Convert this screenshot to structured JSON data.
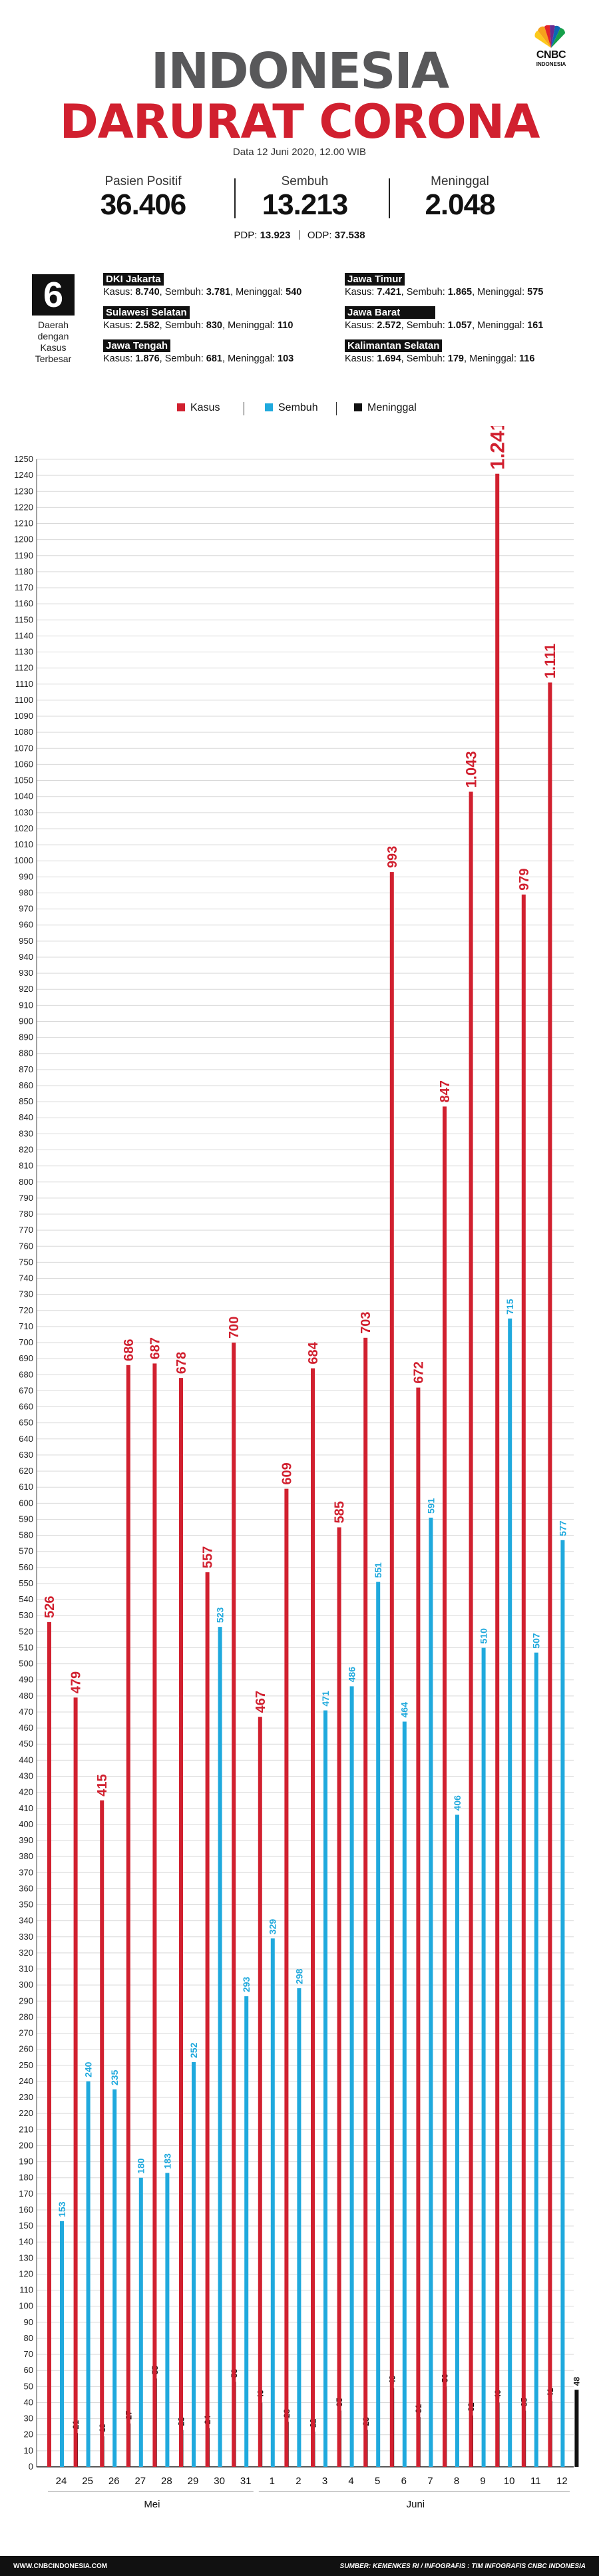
{
  "header": {
    "title_line1": "INDONESIA",
    "title_line2": "DARURAT CORONA",
    "date": "Data 12 Juni 2020, 12.00 WIB"
  },
  "logo": {
    "brand": "CNBC",
    "sub": "INDONESIA",
    "icon": "peacock-icon"
  },
  "summary": [
    {
      "label": "Pasien Positif",
      "value": "36.406"
    },
    {
      "label": "Sembuh",
      "value": "13.213"
    },
    {
      "label": "Meninggal",
      "value": "2.048"
    }
  ],
  "pdp_odp": {
    "pdp_label": "PDP:",
    "pdp_value": "13.923",
    "odp_label": "ODP:",
    "odp_value": "37.538"
  },
  "top_regions": {
    "count": "6",
    "caption": [
      "Daerah",
      "dengan",
      "Kasus",
      "Terbesar"
    ],
    "kasus_label": "Kasus:",
    "sembuh_label": "Sembuh:",
    "meninggal_label": "Meninggal:",
    "items": [
      {
        "name": "DKI Jakarta",
        "kasus": "8.740",
        "sembuh": "3.781",
        "meninggal": "540"
      },
      {
        "name": "Sulawesi Selatan",
        "kasus": "2.582",
        "sembuh": "830",
        "meninggal": "110"
      },
      {
        "name": "Jawa Tengah",
        "kasus": "1.876",
        "sembuh": "681",
        "meninggal": "103"
      },
      {
        "name": "Jawa Timur",
        "kasus": "7.421",
        "sembuh": "1.865",
        "meninggal": "575"
      },
      {
        "name": "Jawa Barat",
        "kasus": "2.572",
        "sembuh": "1.057",
        "meninggal": "161"
      },
      {
        "name": "Kalimantan Selatan",
        "kasus": "1.694",
        "sembuh": "179",
        "meninggal": "116"
      }
    ]
  },
  "colors": {
    "kasus": "#d1202f",
    "sembuh": "#1fa9dd",
    "meninggal": "#111111",
    "grid": "#d9d9d9"
  },
  "chart_data": {
    "type": "bar",
    "categories": [
      "24",
      "25",
      "26",
      "27",
      "28",
      "29",
      "30",
      "31",
      "1",
      "2",
      "3",
      "4",
      "5",
      "6",
      "7",
      "8",
      "9",
      "10",
      "11",
      "12"
    ],
    "month_labels": [
      {
        "label": "Mei",
        "from": 0,
        "to": 7
      },
      {
        "label": "Juni",
        "from": 8,
        "to": 19
      }
    ],
    "series": [
      {
        "name": "Kasus",
        "color": "#d1202f",
        "values": [
          526,
          479,
          415,
          686,
          687,
          678,
          557,
          700,
          467,
          609,
          684,
          585,
          703,
          993,
          672,
          847,
          1043,
          1241,
          979,
          1111
        ]
      },
      {
        "name": "Sembuh",
        "color": "#1fa9dd",
        "values": [
          153,
          240,
          235,
          180,
          183,
          252,
          523,
          293,
          329,
          298,
          471,
          486,
          551,
          464,
          591,
          406,
          510,
          715,
          507,
          577
        ]
      },
      {
        "name": "Meninggal",
        "color": "#111111",
        "values": [
          21,
          19,
          27,
          55,
          23,
          24,
          53,
          40,
          28,
          22,
          35,
          23,
          49,
          31,
          50,
          32,
          40,
          35,
          41,
          48
        ]
      }
    ],
    "value_labels": {
      "Kasus": [
        "526",
        "479",
        "415",
        "686",
        "687",
        "678",
        "557",
        "700",
        "467",
        "609",
        "684",
        "585",
        "703",
        "993",
        "672",
        "847",
        "1.043",
        "1.241",
        "979",
        "1.111"
      ],
      "Sembuh": [
        "153",
        "240",
        "235",
        "180",
        "183",
        "252",
        "523",
        "293",
        "329",
        "298",
        "471",
        "486",
        "551",
        "464",
        "591",
        "406",
        "510",
        "715",
        "507",
        "577"
      ],
      "Meninggal": [
        "21",
        "19",
        "27",
        "55",
        "23",
        "24",
        "53",
        "40",
        "28",
        "22",
        "35",
        "23",
        "49",
        "31",
        "50",
        "32",
        "40",
        "35",
        "41",
        "48"
      ]
    },
    "ylim": [
      0,
      1250
    ],
    "ytick_step": 10,
    "grid": true,
    "legend": "top-center"
  },
  "footer": {
    "left": "WWW.CNBCINDONESIA.COM",
    "right": "SUMBER: KEMENKES RI / INFOGRAFIS : TIM INFOGRAFIS CNBC INDONESIA"
  }
}
